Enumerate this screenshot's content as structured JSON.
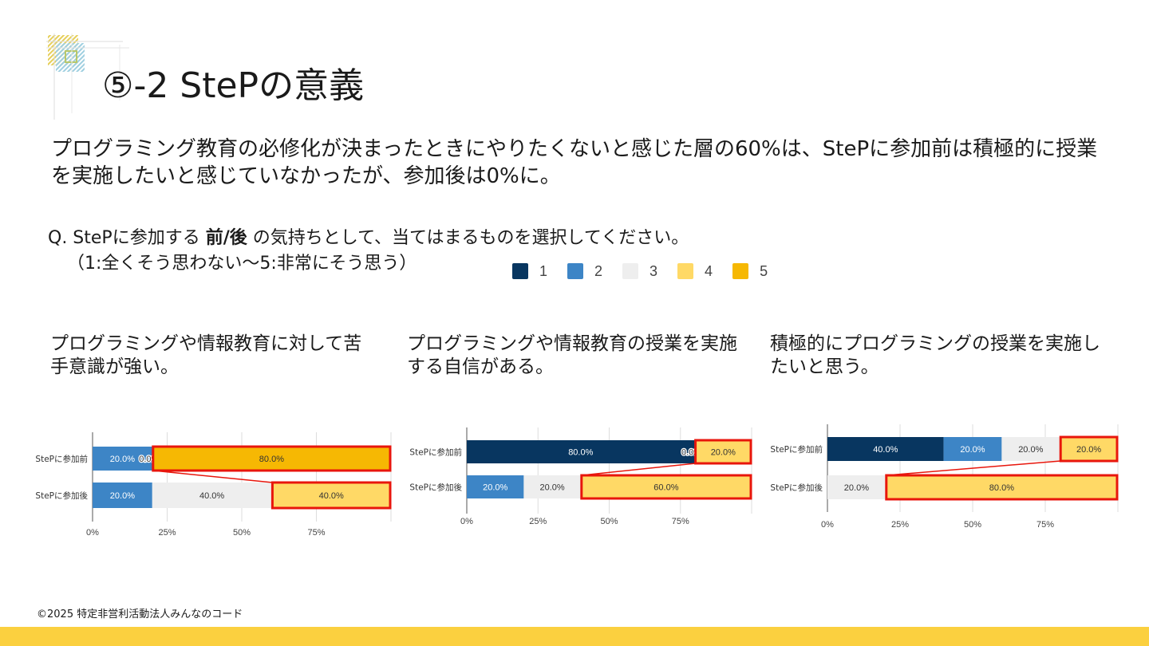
{
  "slide": {
    "title": "⑤-2 StePの意義",
    "summary": "プログラミング教育の必修化が決まったときにやりたくないと感じた層の60%は、StePに参加前は積極的に授業を実施したいと感じていなかったが、参加後は0%に。",
    "question_prefix": "Q. StePに参加する ",
    "question_bold": "前/後",
    "question_suffix": " の気持ちとして、当てはまるものを選択してください。",
    "scale_note": "（1:全くそう思わない～5:非常にそう思う）",
    "copyright": "©2025 特定非営利活動法人みんなのコード"
  },
  "legend": [
    {
      "label": "1",
      "color": "#083660"
    },
    {
      "label": "2",
      "color": "#3d85c6"
    },
    {
      "label": "3",
      "color": "#eeeeee"
    },
    {
      "label": "4",
      "color": "#ffd966"
    },
    {
      "label": "5",
      "color": "#f6b803"
    }
  ],
  "highlight_color": "#e8160c",
  "chart_data": [
    {
      "type": "bar",
      "orientation": "horizontal",
      "stacked": true,
      "title": "プログラミングや情報教育に対して苦手意識が強い。",
      "categories": [
        "StePに参加前",
        "StePに参加後"
      ],
      "xlim": [
        0,
        100
      ],
      "xticks": [
        "0%",
        "25%",
        "50%",
        "75%"
      ],
      "series": [
        {
          "name": "1",
          "values": [
            0,
            0
          ]
        },
        {
          "name": "2",
          "values": [
            20,
            20
          ]
        },
        {
          "name": "3",
          "values": [
            0,
            40
          ]
        },
        {
          "name": "4",
          "values": [
            0,
            40
          ]
        },
        {
          "name": "5",
          "values": [
            80,
            0
          ]
        }
      ],
      "labels": [
        [
          null,
          "20.0%",
          "0.0%",
          null,
          "80.0%"
        ],
        [
          null,
          "20.0%",
          "40.0%",
          "40.0%",
          null
        ]
      ],
      "highlights": [
        [
          0,
          4
        ],
        [
          1,
          3
        ]
      ]
    },
    {
      "type": "bar",
      "orientation": "horizontal",
      "stacked": true,
      "title": "プログラミングや情報教育の授業を実施する自信がある。",
      "categories": [
        "StePに参加前",
        "StePに参加後"
      ],
      "xlim": [
        0,
        100
      ],
      "xticks": [
        "0%",
        "25%",
        "50%",
        "75%"
      ],
      "series": [
        {
          "name": "1",
          "values": [
            80,
            0
          ]
        },
        {
          "name": "2",
          "values": [
            0,
            20
          ]
        },
        {
          "name": "3",
          "values": [
            0,
            20
          ]
        },
        {
          "name": "4",
          "values": [
            20,
            60
          ]
        },
        {
          "name": "5",
          "values": [
            0,
            0
          ]
        }
      ],
      "labels": [
        [
          "80.0%",
          "0.0%",
          null,
          "20.0%",
          null
        ],
        [
          null,
          "20.0%",
          "20.0%",
          "60.0%",
          null
        ]
      ],
      "highlights": [
        [
          0,
          3
        ],
        [
          1,
          3
        ]
      ]
    },
    {
      "type": "bar",
      "orientation": "horizontal",
      "stacked": true,
      "title": "積極的にプログラミングの授業を実施したいと思う。",
      "categories": [
        "StePに参加前",
        "StePに参加後"
      ],
      "xlim": [
        0,
        100
      ],
      "xticks": [
        "0%",
        "25%",
        "50%",
        "75%"
      ],
      "series": [
        {
          "name": "1",
          "values": [
            40,
            0
          ]
        },
        {
          "name": "2",
          "values": [
            20,
            0
          ]
        },
        {
          "name": "3",
          "values": [
            20,
            20
          ]
        },
        {
          "name": "4",
          "values": [
            20,
            80
          ]
        },
        {
          "name": "5",
          "values": [
            0,
            0
          ]
        }
      ],
      "labels": [
        [
          "40.0%",
          "20.0%",
          "20.0%",
          "20.0%",
          null
        ],
        [
          null,
          null,
          "20.0%",
          "80.0%",
          null
        ]
      ],
      "highlights": [
        [
          0,
          3
        ],
        [
          1,
          3
        ]
      ]
    }
  ]
}
